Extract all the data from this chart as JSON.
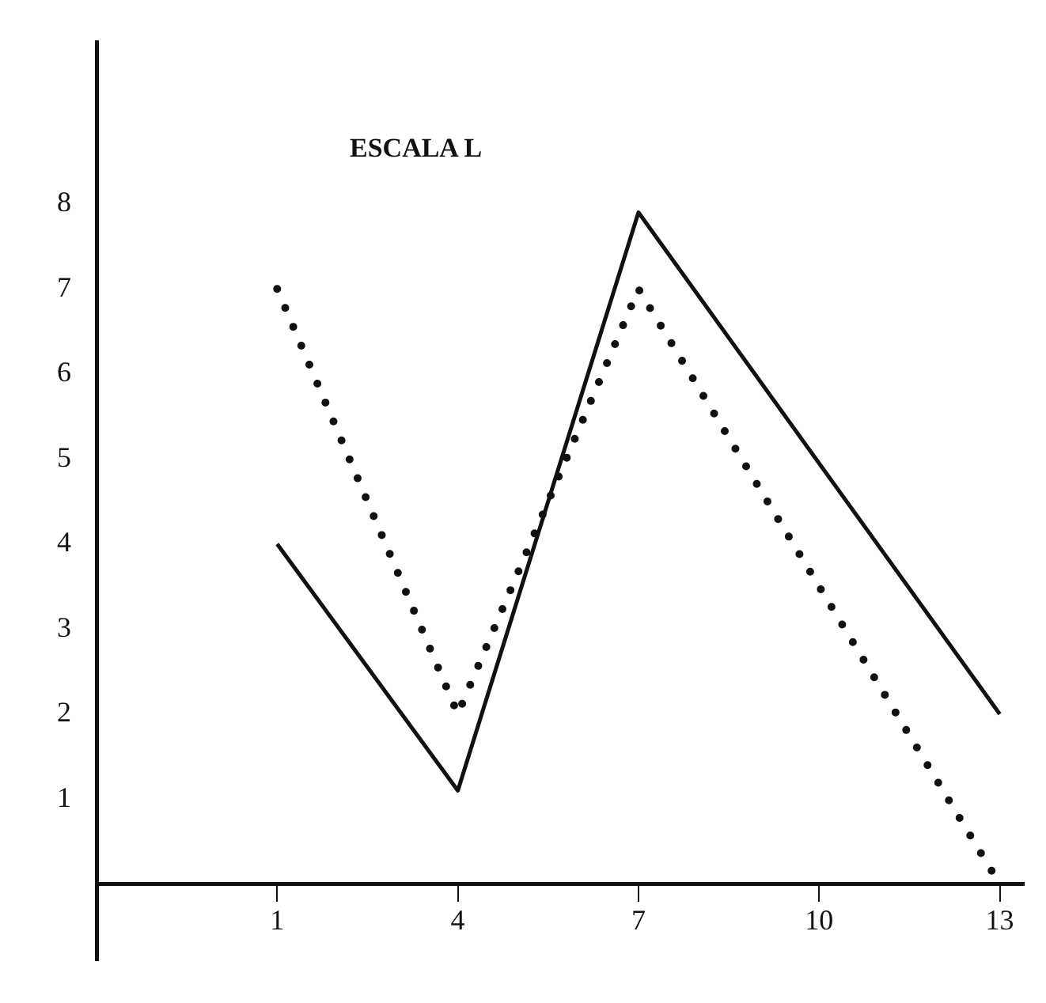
{
  "chart_data": {
    "type": "line",
    "title": "ESCALA L",
    "xlim": [
      -2,
      13.4
    ],
    "xticks": [
      1,
      4,
      7,
      10,
      13
    ],
    "ylim": [
      -0.9,
      9.9
    ],
    "yticks": [
      1,
      2,
      3,
      4,
      5,
      6,
      7,
      8
    ],
    "grid": false,
    "legend": false,
    "marker": "none",
    "series": [
      {
        "color": "#111111",
        "line_style": "solid",
        "x": [
          1,
          4,
          7,
          13
        ],
        "values": [
          4,
          1.1,
          7.9,
          2
        ]
      },
      {
        "color": "#111111",
        "line_style": "dotted",
        "x": [
          1,
          4,
          7,
          13
        ],
        "values": [
          7,
          2,
          7,
          0
        ]
      }
    ]
  }
}
